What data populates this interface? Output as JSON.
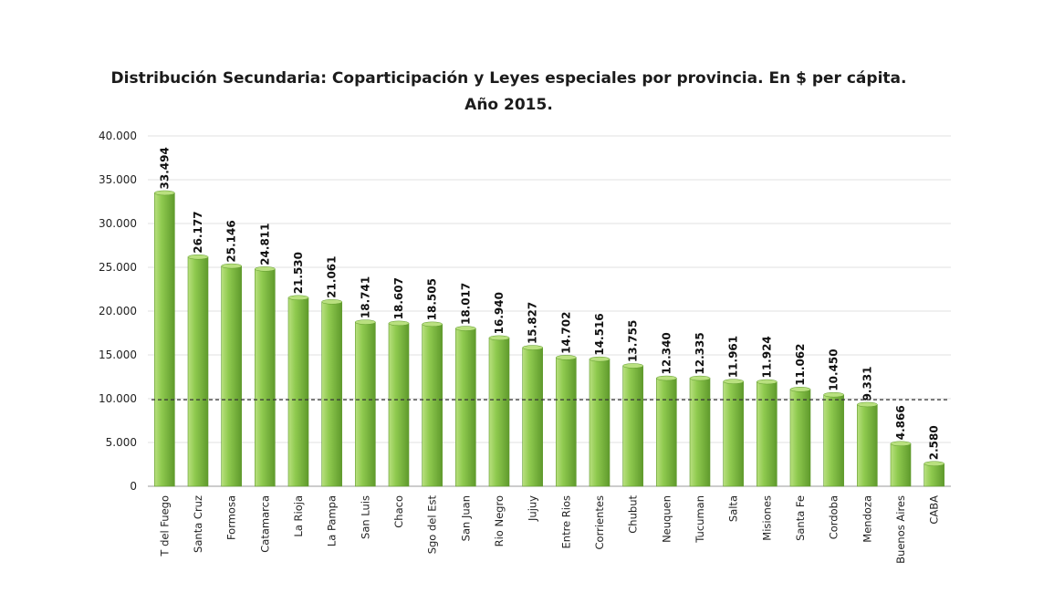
{
  "chart_data": {
    "type": "bar",
    "title": "Distribución Secundaria: Coparticipación y Leyes especiales por provincia. En $ per cápita.",
    "subtitle": "Año 2015.",
    "categories": [
      "T del Fuego",
      "Santa Cruz",
      "Formosa",
      "Catamarca",
      "La Rioja",
      "La Pampa",
      "San Luis",
      "Chaco",
      "Sgo del Est",
      "San Juan",
      "Rio Negro",
      "Jujuy",
      "Entre Rios",
      "Corrientes",
      "Chubut",
      "Neuquen",
      "Tucuman",
      "Salta",
      "Misiones",
      "Santa Fe",
      "Cordoba",
      "Mendoza",
      "Buenos Aires",
      "CABA"
    ],
    "values": [
      33494,
      26177,
      25146,
      24811,
      21530,
      21061,
      18741,
      18607,
      18505,
      18017,
      16940,
      15827,
      14702,
      14516,
      13755,
      12340,
      12335,
      11961,
      11924,
      11062,
      10450,
      9331,
      4866,
      2580
    ],
    "value_labels": [
      "33.494",
      "26.177",
      "25.146",
      "24.811",
      "21.530",
      "21.061",
      "18.741",
      "18.607",
      "18.505",
      "18.017",
      "16.940",
      "15.827",
      "14.702",
      "14.516",
      "13.755",
      "12.340",
      "12.335",
      "11.961",
      "11.924",
      "11.062",
      "10.450",
      "9.331",
      "4.866",
      "2.580"
    ],
    "yticks": [
      0,
      5000,
      10000,
      15000,
      20000,
      25000,
      30000,
      35000,
      40000
    ],
    "ytick_labels": [
      "0",
      "5.000",
      "10.000",
      "15.000",
      "20.000",
      "25.000",
      "30.000",
      "35.000",
      "40.000"
    ],
    "ylim": [
      0,
      40000
    ],
    "reference_line": 9880,
    "grid": true,
    "legend": "none",
    "colors": {
      "bar_fill": "#8fca4f",
      "bar_light": "#b9e07f",
      "bar_dark": "#5f9a2c",
      "grid": "#e2e2e2",
      "reference_line": "#333333"
    }
  }
}
